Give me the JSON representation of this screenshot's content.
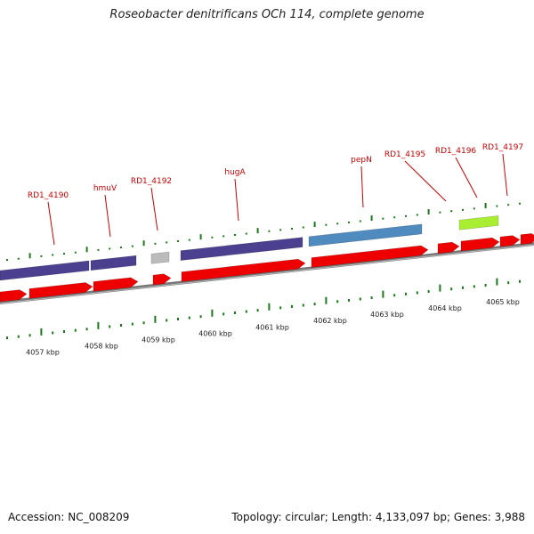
{
  "title": "Roseobacter denitrificans OCh 114, complete genome",
  "footer": {
    "accession": "Accession: NC_008209",
    "topology": "Topology: circular; Length: 4,133,097 bp; Genes: 3,988"
  },
  "colors": {
    "cds_red": "#ee0000",
    "backbone_gray": "#777777",
    "tick_green": "#1a7a1a",
    "label_red": "#cc0000",
    "feature_purple": "#4b3f8f",
    "feature_blue": "#4f8bbf",
    "feature_gray": "#bbbbbb",
    "feature_lime": "#aaee33"
  },
  "gene_labels": [
    "RD1_4190",
    "hmuV",
    "RD1_4192",
    "hugA",
    "pepN",
    "RD1_4195",
    "RD1_4196",
    "RD1_4197"
  ],
  "kbp_labels": [
    "4057 kbp",
    "4058 kbp",
    "4059 kbp",
    "4060 kbp",
    "4061 kbp",
    "4062 kbp",
    "4063 kbp",
    "4064 kbp",
    "4065 kbp"
  ]
}
